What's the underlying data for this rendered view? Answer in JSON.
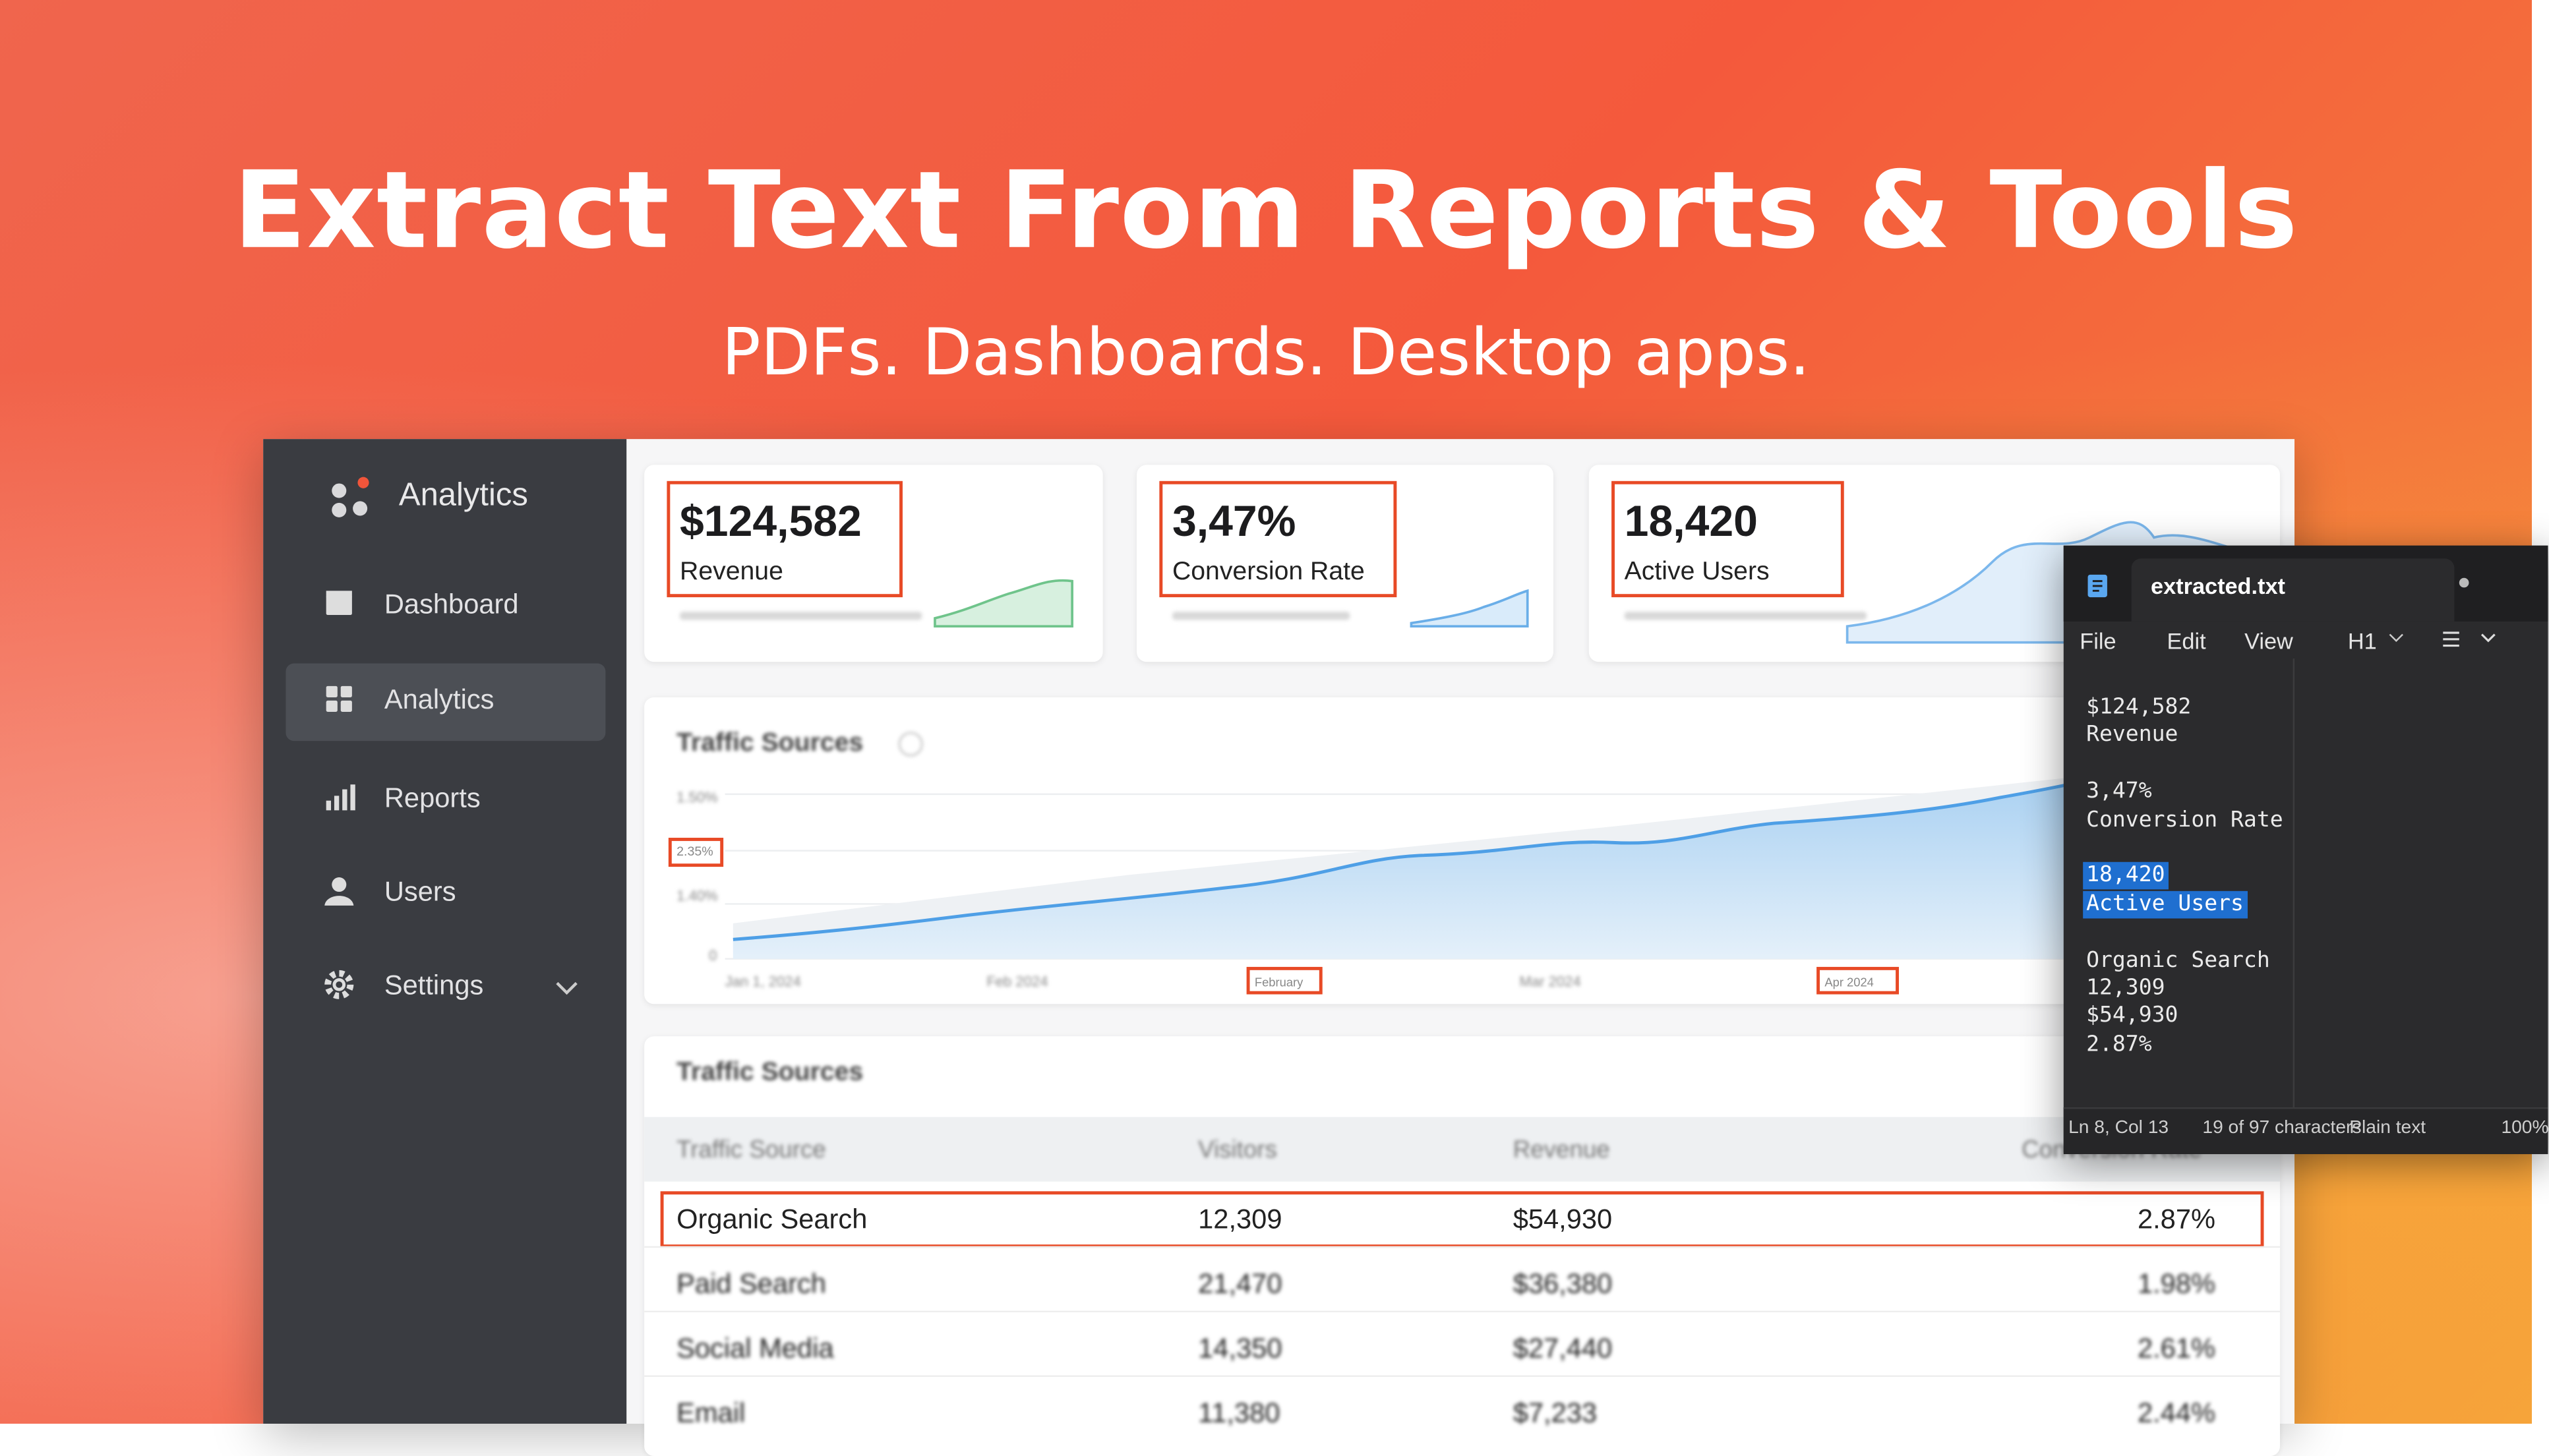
{
  "header": {
    "title": "Extract Text From Reports & Tools",
    "subtitle": "PDFs. Dashboards. Desktop apps."
  },
  "sidebar": {
    "brand": "Analytics",
    "nav": [
      "Dashboard",
      "Analytics",
      "Reports",
      "Users",
      "Settings"
    ]
  },
  "kpis": [
    {
      "value": "$124,582",
      "label": "Revenue"
    },
    {
      "value": "3,47%",
      "label": "Conversion Rate"
    },
    {
      "value": "18,420",
      "label": "Active Users"
    }
  ],
  "chart_card": {
    "title": "Traffic Sources",
    "y_labels": [
      "1.50%",
      "2.35%",
      "1.40%",
      "0"
    ],
    "x_labels": [
      "Jan 1, 2024",
      "Feb 2024",
      "February",
      "Mar 2024",
      "Apr 2024"
    ]
  },
  "table": {
    "title": "Traffic Sources",
    "columns": [
      "Traffic Source",
      "Visitors",
      "Revenue",
      "Conversion Rate"
    ],
    "rows": [
      [
        "Organic Search",
        "12,309",
        "$54,930",
        "2.87%"
      ],
      [
        "Paid Search",
        "21,470",
        "$36,380",
        "1.98%"
      ],
      [
        "Social Media",
        "14,350",
        "$27,440",
        "2.61%"
      ],
      [
        "Email",
        "11,380",
        "$7,233",
        "2.44%"
      ]
    ]
  },
  "editor": {
    "filename": "extracted.txt",
    "menu": [
      "File",
      "Edit",
      "View",
      "H1"
    ],
    "blocks": [
      [
        "$124,582",
        "Revenue"
      ],
      [
        "3,47%",
        "Conversion Rate"
      ],
      [
        "18,420",
        "Active Users"
      ],
      [
        "Organic Search",
        "12,309",
        "$54,930",
        "2.87%"
      ]
    ],
    "status": [
      "Ln 8, Col 13",
      "19 of 97 characters",
      "Plain text",
      "100%"
    ]
  }
}
